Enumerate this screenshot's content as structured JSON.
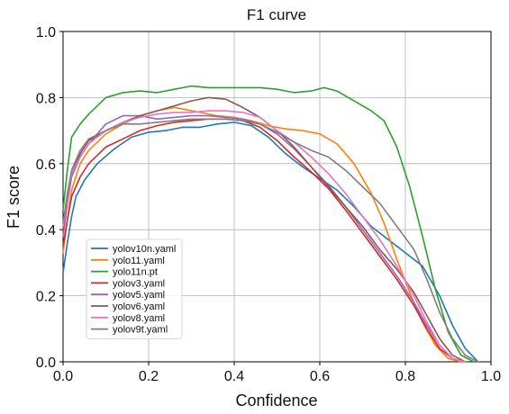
{
  "chart_data": {
    "type": "line",
    "title": "F1 curve",
    "xlabel": "Confidence",
    "ylabel": "F1 score",
    "xlim": [
      0.0,
      1.0
    ],
    "ylim": [
      0.0,
      1.0
    ],
    "xticks": [
      "0.0",
      "0.2",
      "0.4",
      "0.6",
      "0.8",
      "1.0"
    ],
    "yticks": [
      "0.0",
      "0.2",
      "0.4",
      "0.6",
      "0.8",
      "1.0"
    ],
    "grid": true,
    "legend_position": "lower-left",
    "series": [
      {
        "name": "yolov10n.yaml",
        "color": "#1f77b4",
        "points": [
          [
            0.0,
            0.27
          ],
          [
            0.01,
            0.36
          ],
          [
            0.02,
            0.44
          ],
          [
            0.03,
            0.5
          ],
          [
            0.05,
            0.55
          ],
          [
            0.08,
            0.6
          ],
          [
            0.12,
            0.645
          ],
          [
            0.16,
            0.68
          ],
          [
            0.2,
            0.695
          ],
          [
            0.24,
            0.7
          ],
          [
            0.28,
            0.71
          ],
          [
            0.32,
            0.71
          ],
          [
            0.36,
            0.72
          ],
          [
            0.4,
            0.725
          ],
          [
            0.44,
            0.715
          ],
          [
            0.48,
            0.68
          ],
          [
            0.52,
            0.63
          ],
          [
            0.56,
            0.59
          ],
          [
            0.6,
            0.555
          ],
          [
            0.64,
            0.52
          ],
          [
            0.68,
            0.47
          ],
          [
            0.72,
            0.41
          ],
          [
            0.76,
            0.37
          ],
          [
            0.8,
            0.33
          ],
          [
            0.84,
            0.29
          ],
          [
            0.88,
            0.2
          ],
          [
            0.91,
            0.11
          ],
          [
            0.94,
            0.04
          ],
          [
            0.97,
            0.0
          ]
        ]
      },
      {
        "name": "yolo11.yaml",
        "color": "#ff7f0e",
        "points": [
          [
            0.0,
            0.33
          ],
          [
            0.01,
            0.43
          ],
          [
            0.02,
            0.52
          ],
          [
            0.04,
            0.6
          ],
          [
            0.06,
            0.64
          ],
          [
            0.1,
            0.69
          ],
          [
            0.14,
            0.72
          ],
          [
            0.18,
            0.745
          ],
          [
            0.22,
            0.76
          ],
          [
            0.26,
            0.77
          ],
          [
            0.28,
            0.765
          ],
          [
            0.32,
            0.755
          ],
          [
            0.36,
            0.745
          ],
          [
            0.4,
            0.74
          ],
          [
            0.44,
            0.73
          ],
          [
            0.48,
            0.715
          ],
          [
            0.52,
            0.705
          ],
          [
            0.56,
            0.7
          ],
          [
            0.6,
            0.69
          ],
          [
            0.64,
            0.66
          ],
          [
            0.68,
            0.6
          ],
          [
            0.72,
            0.51
          ],
          [
            0.75,
            0.42
          ],
          [
            0.78,
            0.31
          ],
          [
            0.81,
            0.21
          ],
          [
            0.84,
            0.12
          ],
          [
            0.87,
            0.05
          ],
          [
            0.9,
            0.01
          ],
          [
            0.93,
            0.0
          ]
        ]
      },
      {
        "name": "yolo11n.pt",
        "color": "#2ca02c",
        "points": [
          [
            0.0,
            0.46
          ],
          [
            0.01,
            0.58
          ],
          [
            0.02,
            0.68
          ],
          [
            0.04,
            0.72
          ],
          [
            0.06,
            0.75
          ],
          [
            0.1,
            0.8
          ],
          [
            0.14,
            0.815
          ],
          [
            0.18,
            0.82
          ],
          [
            0.22,
            0.815
          ],
          [
            0.26,
            0.825
          ],
          [
            0.3,
            0.835
          ],
          [
            0.34,
            0.83
          ],
          [
            0.38,
            0.83
          ],
          [
            0.42,
            0.83
          ],
          [
            0.46,
            0.83
          ],
          [
            0.5,
            0.825
          ],
          [
            0.54,
            0.815
          ],
          [
            0.58,
            0.82
          ],
          [
            0.61,
            0.83
          ],
          [
            0.64,
            0.82
          ],
          [
            0.68,
            0.79
          ],
          [
            0.72,
            0.76
          ],
          [
            0.75,
            0.73
          ],
          [
            0.78,
            0.65
          ],
          [
            0.81,
            0.53
          ],
          [
            0.84,
            0.38
          ],
          [
            0.87,
            0.22
          ],
          [
            0.9,
            0.09
          ],
          [
            0.93,
            0.02
          ],
          [
            0.96,
            0.0
          ]
        ]
      },
      {
        "name": "yolov3.yaml",
        "color": "#d62728",
        "points": [
          [
            0.0,
            0.35
          ],
          [
            0.01,
            0.43
          ],
          [
            0.02,
            0.5
          ],
          [
            0.04,
            0.56
          ],
          [
            0.06,
            0.6
          ],
          [
            0.1,
            0.65
          ],
          [
            0.14,
            0.675
          ],
          [
            0.18,
            0.7
          ],
          [
            0.22,
            0.715
          ],
          [
            0.26,
            0.725
          ],
          [
            0.3,
            0.73
          ],
          [
            0.34,
            0.735
          ],
          [
            0.38,
            0.735
          ],
          [
            0.42,
            0.73
          ],
          [
            0.46,
            0.71
          ],
          [
            0.5,
            0.67
          ],
          [
            0.54,
            0.62
          ],
          [
            0.58,
            0.575
          ],
          [
            0.62,
            0.525
          ],
          [
            0.66,
            0.46
          ],
          [
            0.7,
            0.39
          ],
          [
            0.74,
            0.32
          ],
          [
            0.78,
            0.25
          ],
          [
            0.82,
            0.17
          ],
          [
            0.85,
            0.1
          ],
          [
            0.88,
            0.04
          ],
          [
            0.91,
            0.01
          ],
          [
            0.94,
            0.0
          ]
        ]
      },
      {
        "name": "yolov5.yaml",
        "color": "#9467bd",
        "points": [
          [
            0.0,
            0.38
          ],
          [
            0.01,
            0.48
          ],
          [
            0.02,
            0.56
          ],
          [
            0.04,
            0.62
          ],
          [
            0.06,
            0.66
          ],
          [
            0.1,
            0.72
          ],
          [
            0.14,
            0.745
          ],
          [
            0.18,
            0.745
          ],
          [
            0.22,
            0.735
          ],
          [
            0.26,
            0.74
          ],
          [
            0.3,
            0.745
          ],
          [
            0.34,
            0.745
          ],
          [
            0.38,
            0.74
          ],
          [
            0.42,
            0.735
          ],
          [
            0.46,
            0.72
          ],
          [
            0.5,
            0.69
          ],
          [
            0.54,
            0.645
          ],
          [
            0.58,
            0.59
          ],
          [
            0.62,
            0.535
          ],
          [
            0.66,
            0.47
          ],
          [
            0.7,
            0.4
          ],
          [
            0.74,
            0.33
          ],
          [
            0.78,
            0.26
          ],
          [
            0.82,
            0.18
          ],
          [
            0.85,
            0.11
          ],
          [
            0.88,
            0.05
          ],
          [
            0.91,
            0.01
          ],
          [
            0.94,
            0.0
          ]
        ]
      },
      {
        "name": "yolov6.yaml",
        "color": "#8c564b",
        "points": [
          [
            0.0,
            0.4
          ],
          [
            0.01,
            0.5
          ],
          [
            0.02,
            0.57
          ],
          [
            0.04,
            0.63
          ],
          [
            0.06,
            0.67
          ],
          [
            0.1,
            0.7
          ],
          [
            0.14,
            0.725
          ],
          [
            0.18,
            0.745
          ],
          [
            0.22,
            0.76
          ],
          [
            0.26,
            0.775
          ],
          [
            0.3,
            0.79
          ],
          [
            0.34,
            0.8
          ],
          [
            0.38,
            0.795
          ],
          [
            0.42,
            0.77
          ],
          [
            0.46,
            0.74
          ],
          [
            0.5,
            0.7
          ],
          [
            0.54,
            0.65
          ],
          [
            0.58,
            0.59
          ],
          [
            0.62,
            0.53
          ],
          [
            0.66,
            0.47
          ],
          [
            0.7,
            0.41
          ],
          [
            0.74,
            0.34
          ],
          [
            0.78,
            0.28
          ],
          [
            0.82,
            0.21
          ],
          [
            0.85,
            0.14
          ],
          [
            0.88,
            0.07
          ],
          [
            0.91,
            0.02
          ],
          [
            0.94,
            0.0
          ]
        ]
      },
      {
        "name": "yolov8.yaml",
        "color": "#e377c2",
        "points": [
          [
            0.0,
            0.41
          ],
          [
            0.01,
            0.5
          ],
          [
            0.02,
            0.57
          ],
          [
            0.04,
            0.62
          ],
          [
            0.06,
            0.66
          ],
          [
            0.1,
            0.7
          ],
          [
            0.14,
            0.725
          ],
          [
            0.18,
            0.74
          ],
          [
            0.22,
            0.75
          ],
          [
            0.26,
            0.755
          ],
          [
            0.3,
            0.755
          ],
          [
            0.34,
            0.76
          ],
          [
            0.38,
            0.76
          ],
          [
            0.42,
            0.755
          ],
          [
            0.46,
            0.74
          ],
          [
            0.5,
            0.7
          ],
          [
            0.54,
            0.665
          ],
          [
            0.58,
            0.62
          ],
          [
            0.62,
            0.57
          ],
          [
            0.66,
            0.51
          ],
          [
            0.7,
            0.44
          ],
          [
            0.74,
            0.37
          ],
          [
            0.78,
            0.29
          ],
          [
            0.82,
            0.2
          ],
          [
            0.85,
            0.12
          ],
          [
            0.88,
            0.05
          ],
          [
            0.91,
            0.01
          ],
          [
            0.94,
            0.0
          ]
        ]
      },
      {
        "name": "yolov9t.yaml",
        "color": "#7f7f7f",
        "points": [
          [
            0.0,
            0.42
          ],
          [
            0.01,
            0.51
          ],
          [
            0.02,
            0.58
          ],
          [
            0.04,
            0.64
          ],
          [
            0.06,
            0.675
          ],
          [
            0.1,
            0.7
          ],
          [
            0.14,
            0.72
          ],
          [
            0.18,
            0.72
          ],
          [
            0.22,
            0.725
          ],
          [
            0.26,
            0.73
          ],
          [
            0.3,
            0.735
          ],
          [
            0.34,
            0.735
          ],
          [
            0.38,
            0.735
          ],
          [
            0.42,
            0.73
          ],
          [
            0.46,
            0.72
          ],
          [
            0.5,
            0.695
          ],
          [
            0.54,
            0.665
          ],
          [
            0.58,
            0.64
          ],
          [
            0.62,
            0.62
          ],
          [
            0.66,
            0.58
          ],
          [
            0.7,
            0.53
          ],
          [
            0.74,
            0.48
          ],
          [
            0.78,
            0.41
          ],
          [
            0.82,
            0.34
          ],
          [
            0.85,
            0.25
          ],
          [
            0.88,
            0.15
          ],
          [
            0.91,
            0.07
          ],
          [
            0.94,
            0.02
          ],
          [
            0.97,
            0.0
          ]
        ]
      }
    ]
  }
}
